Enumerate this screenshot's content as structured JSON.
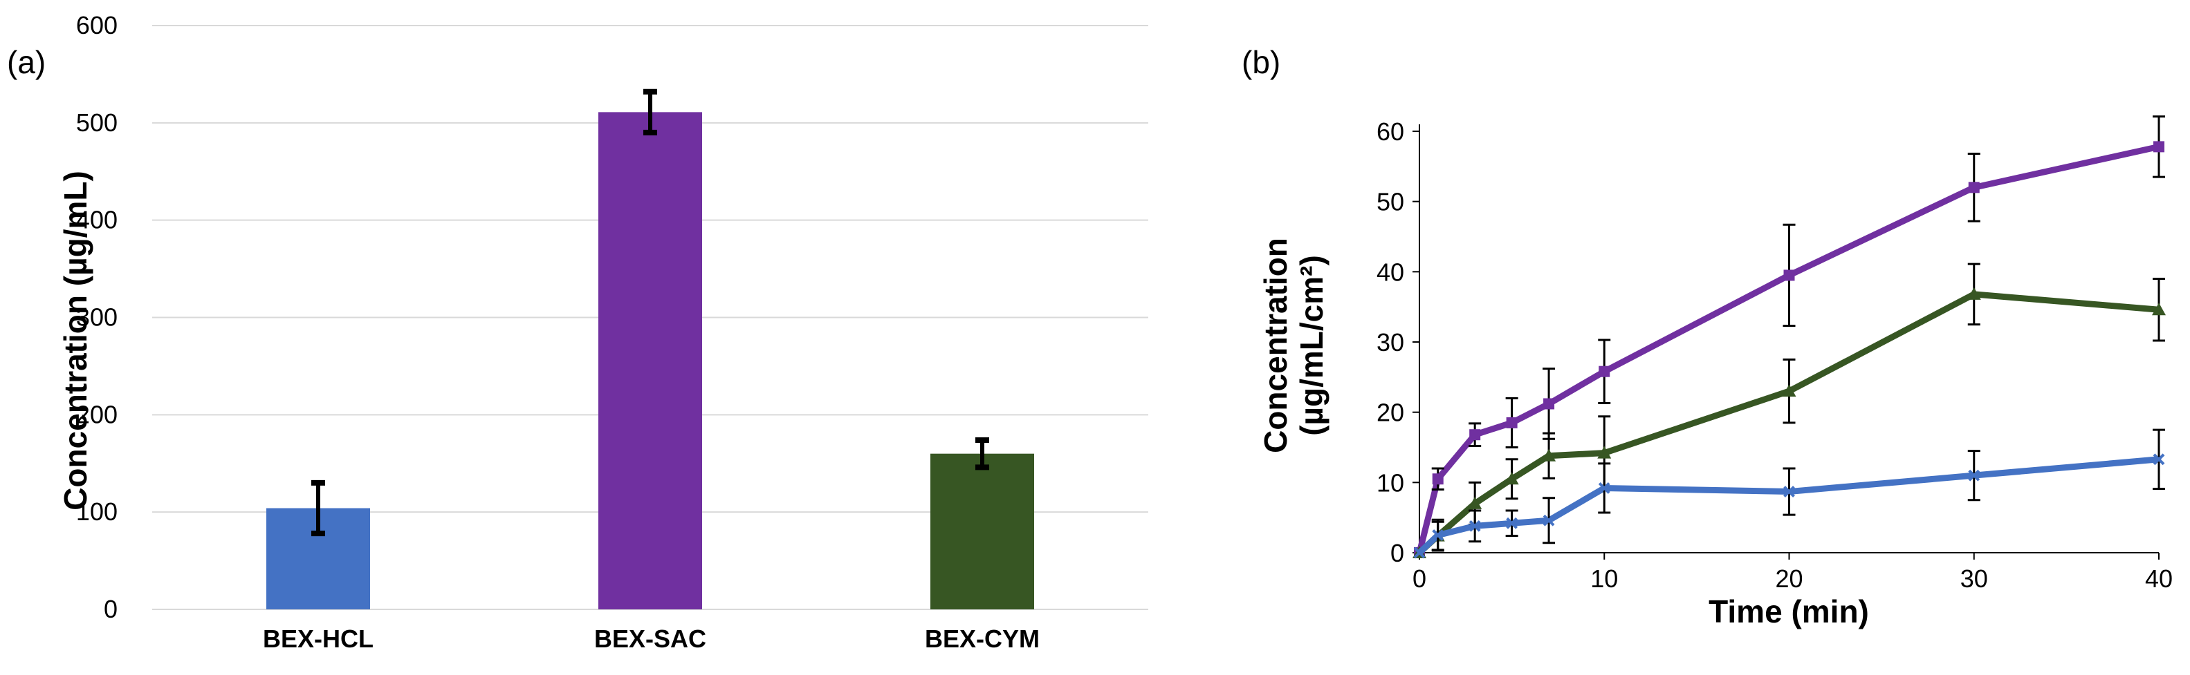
{
  "chart_data": [
    {
      "type": "bar",
      "panel_label": "(a)",
      "categories": [
        "BEX-HCL",
        "BEX-SAC",
        "BEX-CYM"
      ],
      "values": [
        104,
        511,
        160
      ],
      "errors": [
        26,
        21,
        14
      ],
      "colors": [
        "#4472C4",
        "#7030A0",
        "#375623"
      ],
      "ylabel": "Concentration (µg/mL)",
      "ylim": [
        0,
        600
      ],
      "yticks": [
        0,
        100,
        200,
        300,
        400,
        500,
        600
      ],
      "grid": true
    },
    {
      "type": "line",
      "panel_label": "(b)",
      "xlabel": "Time (min)",
      "ylabel_line1": "Concentration",
      "ylabel_line2": "(µg/mL/cm²)",
      "xlim": [
        0,
        40
      ],
      "ylim": [
        0,
        60
      ],
      "xticks": [
        0,
        10,
        20,
        30,
        40
      ],
      "yticks": [
        0,
        10,
        20,
        30,
        40,
        50,
        60
      ],
      "grid": false,
      "series": [
        {
          "color": "#7030A0",
          "marker": "square",
          "x": [
            0,
            1,
            3,
            5,
            7,
            10,
            20,
            30,
            40
          ],
          "y": [
            0,
            10.5,
            16.8,
            18.5,
            21.2,
            25.8,
            39.5,
            52,
            57.8
          ],
          "err": [
            0,
            1.5,
            1.6,
            3.5,
            5,
            4.5,
            7.2,
            4.8,
            4.3
          ]
        },
        {
          "color": "#375623",
          "marker": "triangle",
          "x": [
            0,
            1,
            3,
            5,
            7,
            10,
            20,
            30,
            40
          ],
          "y": [
            0,
            2.4,
            7,
            10.5,
            13.8,
            14.2,
            23,
            36.8,
            34.6
          ],
          "err": [
            0,
            2,
            3,
            2.8,
            3.2,
            5.2,
            4.5,
            4.3,
            4.4
          ]
        },
        {
          "color": "#4472C4",
          "marker": "cross",
          "x": [
            0,
            1,
            3,
            5,
            7,
            10,
            20,
            30,
            40
          ],
          "y": [
            0,
            2.5,
            3.8,
            4.2,
            4.6,
            9.2,
            8.7,
            11,
            13.3
          ],
          "err": [
            0,
            2.2,
            2.2,
            1.8,
            3.2,
            3.5,
            3.3,
            3.5,
            4.2
          ]
        }
      ]
    }
  ]
}
